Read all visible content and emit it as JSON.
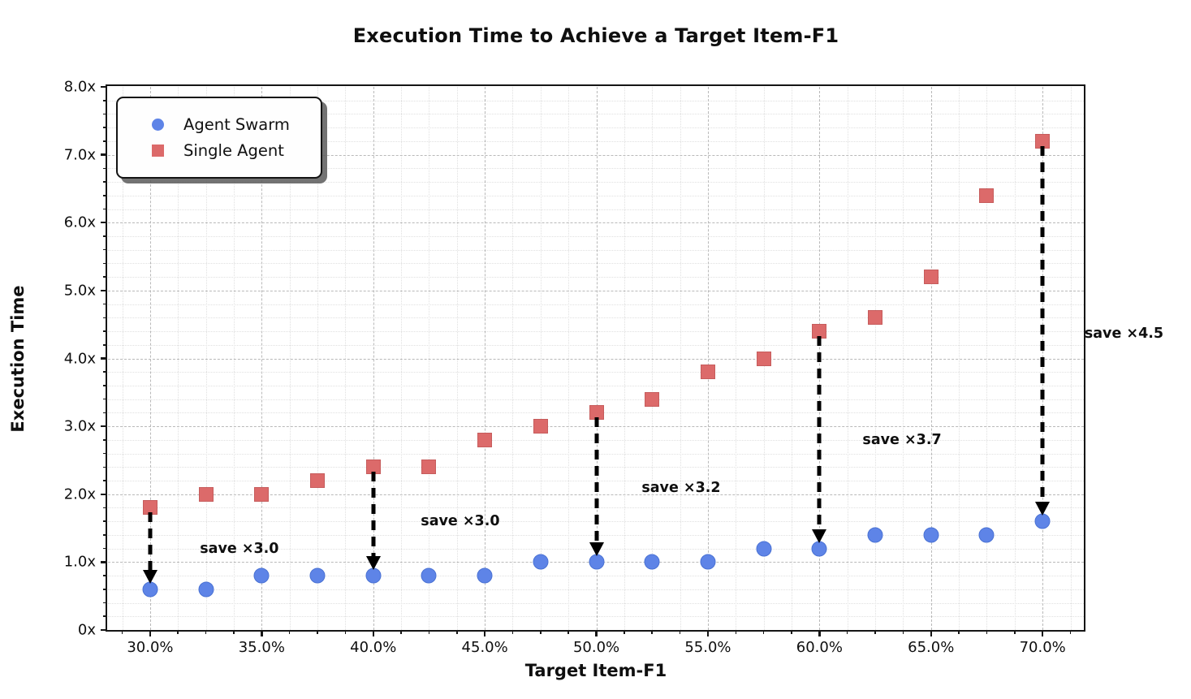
{
  "chart_data": {
    "type": "scatter",
    "title": "Execution Time to Achieve a Target Item-F1",
    "xlabel": "Target Item-F1",
    "ylabel": "Execution Time",
    "xlim": [
      28.11,
      71.85
    ],
    "ylim": [
      0,
      8
    ],
    "grid": "major-dashed-and-minor-dotted",
    "x_tick_values": [
      30,
      35,
      40,
      45,
      50,
      55,
      60,
      65,
      70
    ],
    "x_tick_labels": [
      "30.0%",
      "35.0%",
      "40.0%",
      "45.0%",
      "50.0%",
      "55.0%",
      "60.0%",
      "65.0%",
      "70.0%"
    ],
    "x_minor_step": 1.25,
    "y_tick_values": [
      0,
      1,
      2,
      3,
      4,
      5,
      6,
      7,
      8
    ],
    "y_tick_labels": [
      "0x",
      "1.0x",
      "2.0x",
      "3.0x",
      "4.0x",
      "5.0x",
      "6.0x",
      "7.0x",
      "8.0x"
    ],
    "y_minor_step": 0.2,
    "x": [
      30,
      32.5,
      35,
      37.5,
      40,
      42.5,
      45,
      47.5,
      50,
      52.5,
      55,
      57.5,
      60,
      62.5,
      65,
      67.5,
      70
    ],
    "series": [
      {
        "name": "Agent Swarm",
        "marker": "circle",
        "color": "#5E84E7",
        "edge_color": "#4a72d4",
        "values": [
          0.6,
          0.6,
          0.8,
          0.8,
          0.8,
          0.8,
          0.8,
          1.0,
          1.0,
          1.0,
          1.0,
          1.2,
          1.2,
          1.4,
          1.4,
          1.4,
          1.6
        ]
      },
      {
        "name": "Single Agent",
        "marker": "square",
        "color": "#DC6A6A",
        "edge_color": "#c65c5c",
        "values": [
          1.8,
          2.0,
          2.0,
          2.2,
          2.4,
          2.4,
          2.8,
          3.0,
          3.2,
          3.4,
          3.8,
          4.0,
          4.4,
          4.6,
          5.2,
          6.4,
          7.2
        ]
      }
    ],
    "arrows": [
      {
        "x": 30,
        "from": 1.8,
        "to": 0.6
      },
      {
        "x": 40,
        "from": 2.4,
        "to": 0.8
      },
      {
        "x": 50,
        "from": 3.2,
        "to": 1.0
      },
      {
        "x": 60,
        "from": 4.4,
        "to": 1.2
      },
      {
        "x": 70,
        "from": 7.2,
        "to": 1.6
      }
    ],
    "annotations": [
      {
        "label": "save ×3.0",
        "x": 34.0,
        "y": 1.2
      },
      {
        "label": "save ×3.0",
        "x": 43.9,
        "y": 1.6
      },
      {
        "label": "save ×3.2",
        "x": 53.8,
        "y": 2.09
      },
      {
        "label": "save ×3.7",
        "x": 63.7,
        "y": 2.8
      },
      {
        "label": "save ×4.5",
        "x": 73.65,
        "y": 4.37
      }
    ],
    "legend": {
      "position": "upper-left",
      "entries": [
        "Agent Swarm",
        "Single Agent"
      ]
    }
  }
}
